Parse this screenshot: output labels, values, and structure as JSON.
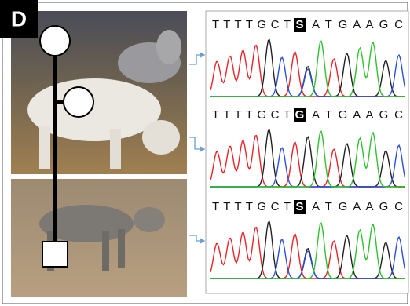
{
  "panel_label": "D",
  "sequences": [
    {
      "before": "T T T T G C T",
      "highlight": "S",
      "after": "A T G A A G C"
    },
    {
      "before": "T T T T G C T",
      "highlight": "G",
      "after": "A T G A A G C"
    },
    {
      "before": "T T T T G C T",
      "highlight": "S",
      "after": "A T G A A G C"
    }
  ]
}
